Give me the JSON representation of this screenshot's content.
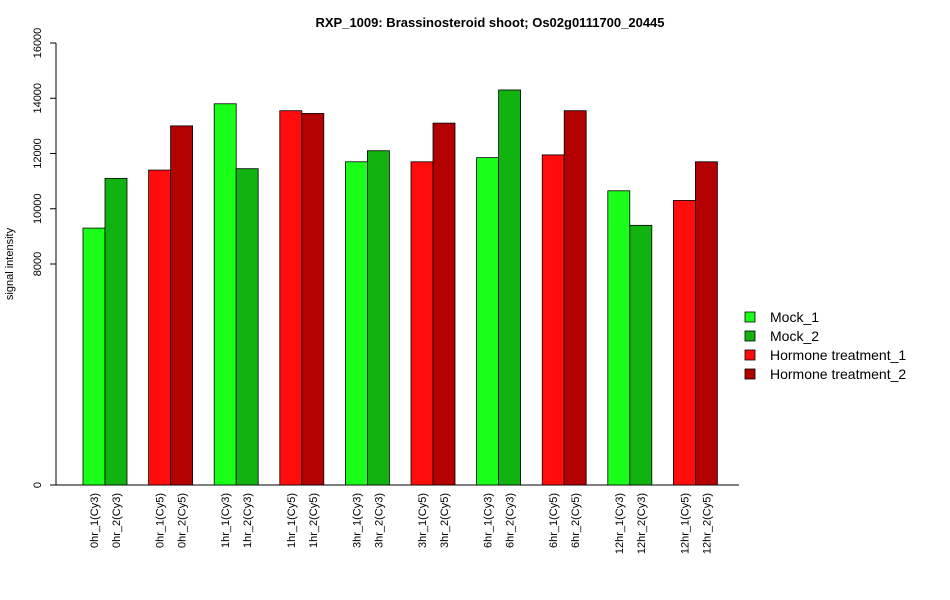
{
  "chart_data": {
    "type": "bar",
    "title": "RXP_1009: Brassinosteroid shoot; Os02g0111700_20445",
    "ylabel": "signal intensity",
    "xlabel": "",
    "ylim": [
      0,
      16000
    ],
    "yticks": [
      "0",
      "8000",
      "10000",
      "12000",
      "14000",
      "16000"
    ],
    "ytick_values": [
      0,
      8000,
      10000,
      12000,
      14000,
      16000
    ],
    "grid": false,
    "legend_position": "right",
    "legend": [
      {
        "name": "Mock_1",
        "color": "#1aff1a"
      },
      {
        "name": "Mock_2",
        "color": "#10b310"
      },
      {
        "name": "Hormone treatment_1",
        "color": "#ff0d0d"
      },
      {
        "name": "Hormone treatment_2",
        "color": "#b30000"
      }
    ],
    "groups": [
      {
        "bars": [
          {
            "label": "0hr_1(Cy3)",
            "value": 9300,
            "color": "#1aff1a"
          },
          {
            "label": "0hr_2(Cy3)",
            "value": 11100,
            "color": "#10b310"
          }
        ]
      },
      {
        "bars": [
          {
            "label": "0hr_1(Cy5)",
            "value": 11400,
            "color": "#ff0d0d"
          },
          {
            "label": "0hr_2(Cy5)",
            "value": 13000,
            "color": "#b30000"
          }
        ]
      },
      {
        "bars": [
          {
            "label": "1hr_1(Cy3)",
            "value": 13800,
            "color": "#1aff1a"
          },
          {
            "label": "1hr_2(Cy3)",
            "value": 11450,
            "color": "#10b310"
          }
        ]
      },
      {
        "bars": [
          {
            "label": "1hr_1(Cy5)",
            "value": 13550,
            "color": "#ff0d0d"
          },
          {
            "label": "1hr_2(Cy5)",
            "value": 13450,
            "color": "#b30000"
          }
        ]
      },
      {
        "bars": [
          {
            "label": "3hr_1(Cy3)",
            "value": 11700,
            "color": "#1aff1a"
          },
          {
            "label": "3hr_2(Cy3)",
            "value": 12100,
            "color": "#10b310"
          }
        ]
      },
      {
        "bars": [
          {
            "label": "3hr_1(Cy5)",
            "value": 11700,
            "color": "#ff0d0d"
          },
          {
            "label": "3hr_2(Cy5)",
            "value": 13100,
            "color": "#b30000"
          }
        ]
      },
      {
        "bars": [
          {
            "label": "6hr_1(Cy3)",
            "value": 11850,
            "color": "#1aff1a"
          },
          {
            "label": "6hr_2(Cy3)",
            "value": 14300,
            "color": "#10b310"
          }
        ]
      },
      {
        "bars": [
          {
            "label": "6hr_1(Cy5)",
            "value": 11950,
            "color": "#ff0d0d"
          },
          {
            "label": "6hr_2(Cy5)",
            "value": 13550,
            "color": "#b30000"
          }
        ]
      },
      {
        "bars": [
          {
            "label": "12hr_1(Cy3)",
            "value": 10650,
            "color": "#1aff1a"
          },
          {
            "label": "12hr_2(Cy3)",
            "value": 9400,
            "color": "#10b310"
          }
        ]
      },
      {
        "bars": [
          {
            "label": "12hr_1(Cy5)",
            "value": 10300,
            "color": "#ff0d0d"
          },
          {
            "label": "12hr_2(Cy5)",
            "value": 11700,
            "color": "#b30000"
          }
        ]
      }
    ]
  }
}
